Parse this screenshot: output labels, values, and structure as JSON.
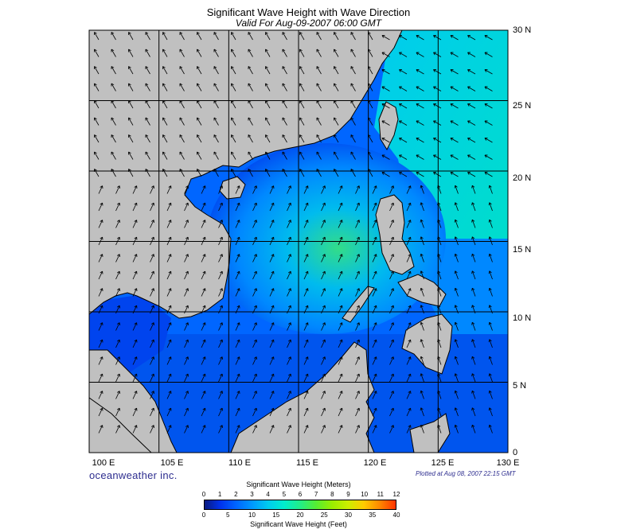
{
  "title": "Significant Wave Height with Wave Direction",
  "subtitle": "Valid For Aug-09-2007 06:00 GMT",
  "lat_labels": [
    "30 N",
    "25 N",
    "20 N",
    "15 N",
    "10 N",
    "5 N",
    "0"
  ],
  "lon_labels": [
    "100 E",
    "105 E",
    "110 E",
    "115 E",
    "120 E",
    "125 E",
    "130 E"
  ],
  "brand": "oceanweather inc.",
  "plotted": "Plotted at Aug 08, 2007 22:15 GMT",
  "colorbar": {
    "meters_label": "Significant Wave Height (Meters)",
    "feet_label": "Significant Wave Height (Feet)",
    "meter_ticks": [
      "0",
      "1",
      "2",
      "3",
      "4",
      "5",
      "6",
      "7",
      "8",
      "9",
      "10",
      "11",
      "12"
    ],
    "feet_ticks": [
      "0",
      "5",
      "10",
      "15",
      "20",
      "25",
      "30",
      "35",
      "40"
    ],
    "colors": [
      "#0a1a80",
      "#0033ee",
      "#0066ff",
      "#0099ff",
      "#00ccee",
      "#00eecc",
      "#22ee88",
      "#55ee33",
      "#99ee00",
      "#ccee00",
      "#ffcc00",
      "#ff8800",
      "#ff3300"
    ]
  },
  "map_colors": {
    "land": "#c0c0c0",
    "sea_low": "#0044ee",
    "sea_mid": "#0099ff",
    "sea_high": "#22dd99",
    "arrow": "#000000"
  }
}
